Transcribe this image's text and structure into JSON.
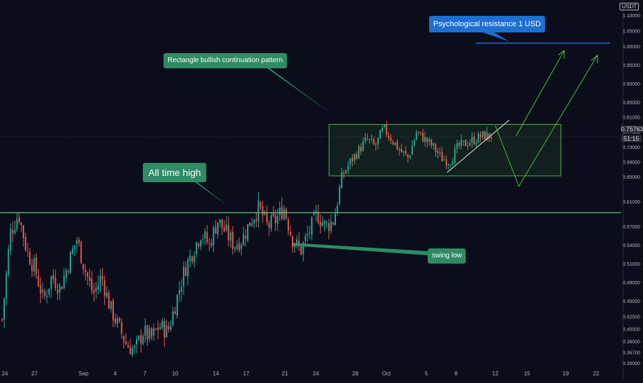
{
  "chart_data": {
    "type": "candlestick",
    "quote_currency": "USDT",
    "y_ticks": [
      0.35,
      0.367,
      0.385,
      0.405,
      0.425,
      0.45,
      0.48,
      0.51,
      0.54,
      0.57,
      0.61,
      0.65,
      0.69,
      0.73,
      0.77,
      0.81,
      0.85,
      0.9,
      0.95,
      1.0,
      1.05,
      1.1
    ],
    "y_tick_labels": [
      "0.35000",
      "0.36700",
      "0.38500",
      "0.40500",
      "0.42500",
      "0.45000",
      "0.48000",
      "0.51000",
      "0.54000",
      "0.57000",
      "0.61000",
      "0.65000",
      "0.69000",
      "0.73000",
      "0.77000",
      "0.81000",
      "0.85000",
      "0.90000",
      "0.95000",
      "1.00000",
      "1.05000",
      "1.10000"
    ],
    "y_range": [
      0.35,
      1.15
    ],
    "x_ticks": [
      "24",
      "27",
      "Sep",
      "4",
      "7",
      "10",
      "14",
      "17",
      "21",
      "24",
      "28",
      "Oct",
      "5",
      "8",
      "12",
      "15",
      "19",
      "22"
    ],
    "current_price": "0.75763",
    "countdown": "51:15",
    "price_series": [
      0.42,
      0.56,
      0.59,
      0.53,
      0.5,
      0.45,
      0.49,
      0.47,
      0.51,
      0.55,
      0.5,
      0.46,
      0.49,
      0.44,
      0.41,
      0.38,
      0.37,
      0.4,
      0.39,
      0.41,
      0.4,
      0.45,
      0.5,
      0.53,
      0.56,
      0.54,
      0.58,
      0.56,
      0.54,
      0.55,
      0.58,
      0.6,
      0.57,
      0.58,
      0.6,
      0.55,
      0.53,
      0.56,
      0.59,
      0.57,
      0.58,
      0.65,
      0.69,
      0.72,
      0.75,
      0.73,
      0.78,
      0.75,
      0.72,
      0.7,
      0.77,
      0.75,
      0.73,
      0.7,
      0.69,
      0.73,
      0.74,
      0.75,
      0.76,
      0.758
    ],
    "levels": {
      "all_time_high": 0.592,
      "psychological_resistance": 1.01,
      "rectangle_top": 0.79,
      "rectangle_bottom": 0.652
    },
    "annotations": {
      "rectangle": "Rectangle bullish continuation pattern",
      "ath": "All time high",
      "swing_low": "swing low",
      "resistance": "Psychological resistance 1 USD"
    }
  },
  "colors": {
    "background": "#0b0e1a",
    "up_candle": "#26a69a",
    "down_candle": "#ef5350",
    "pattern_green": "#52b948",
    "ath_line": "#6fdc8c",
    "resistance_line": "#1d6fd1",
    "callout_green": "#2e8b64",
    "callout_blue": "#1d6fd1",
    "axis_text": "#b2b5be"
  }
}
